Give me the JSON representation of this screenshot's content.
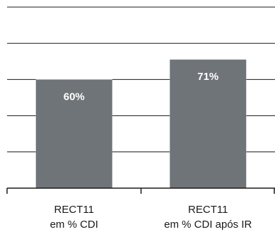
{
  "chart_data": {
    "type": "bar",
    "categories": [
      [
        "RECT11",
        "em % CDI"
      ],
      [
        "RECT11",
        "em % CDI após IR"
      ]
    ],
    "values": [
      60,
      71
    ],
    "data_labels": [
      "60%",
      "71%"
    ],
    "ylim": [
      0,
      100
    ],
    "grid": true,
    "gridline_values": [
      20,
      40,
      60,
      80,
      100
    ],
    "title": "",
    "xlabel": "",
    "ylabel": "",
    "colors": {
      "bar": "#6f7478",
      "grid": "#1a1a1a",
      "axis": "#1a1a1a",
      "label_inside": "#ffffff"
    }
  }
}
